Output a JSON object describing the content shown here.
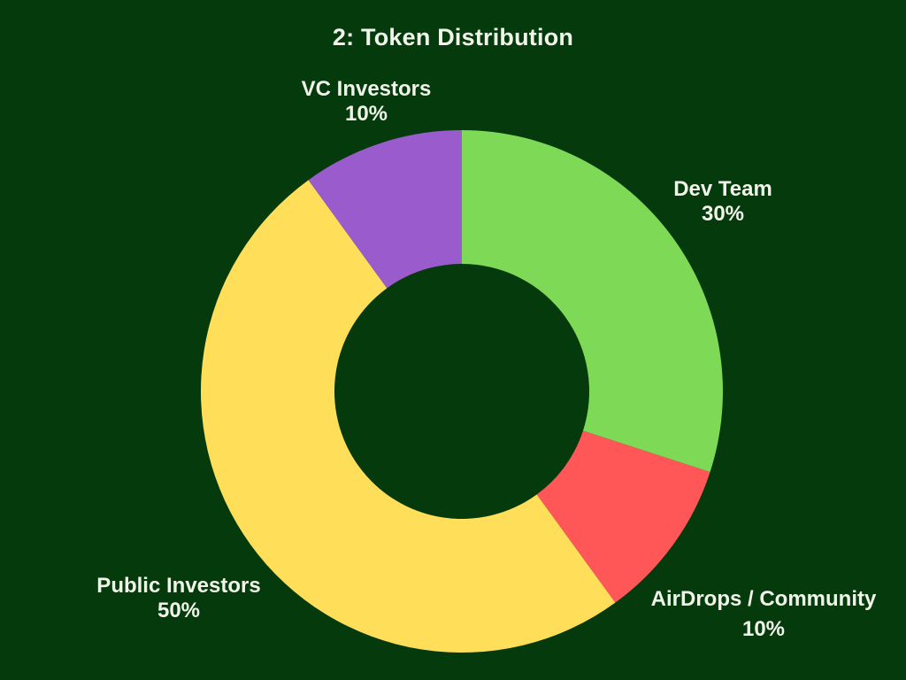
{
  "page": {
    "background_color": "#053a0d",
    "text_color": "#f1f5e9"
  },
  "chart_data": {
    "type": "pie",
    "subtype": "donut",
    "title": "2: Token Distribution",
    "start_angle_deg": 0,
    "direction": "clockwise",
    "legend_position": "none",
    "labels_outside": true,
    "segments": [
      {
        "label": "Dev Team",
        "value": 30,
        "pct": "30%",
        "color": "#7ED957"
      },
      {
        "label": "AirDrops / Community",
        "value": 10,
        "pct": "10%",
        "color": "#FF5757"
      },
      {
        "label": "Public Investors",
        "value": 50,
        "pct": "50%",
        "color": "#FFDE59"
      },
      {
        "label": "VC Investors",
        "value": 10,
        "pct": "10%",
        "color": "#9A5BCD"
      }
    ]
  }
}
